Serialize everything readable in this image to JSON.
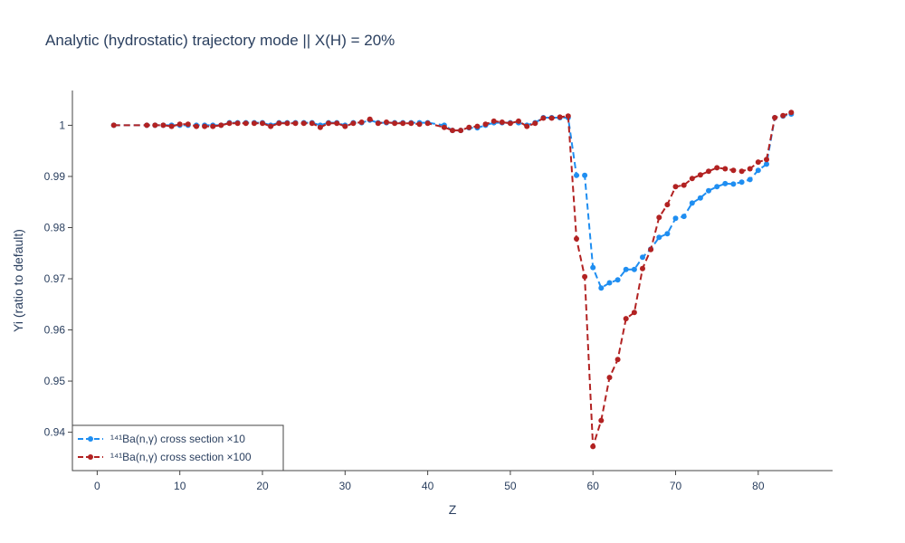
{
  "chart_data": {
    "type": "line",
    "title": "Analytic (hydrostatic) trajectory mode || X(H) = 20%",
    "xlabel": "Z",
    "ylabel": "Yi (ratio to default)",
    "xlim": [
      -3,
      89
    ],
    "ylim": [
      0.9325,
      1.0068
    ],
    "x_ticks": [
      0,
      10,
      20,
      30,
      40,
      50,
      60,
      70,
      80
    ],
    "y_ticks": [
      0.94,
      0.95,
      0.96,
      0.97,
      0.98,
      0.99,
      1
    ],
    "y_tick_labels": [
      "0.94",
      "0.95",
      "0.96",
      "0.97",
      "0.98",
      "0.99",
      "1"
    ],
    "grid": false,
    "legend_position": "bottom-left",
    "x": [
      2,
      6,
      7,
      8,
      9,
      10,
      11,
      12,
      13,
      14,
      15,
      16,
      17,
      18,
      19,
      20,
      21,
      22,
      23,
      24,
      25,
      26,
      27,
      28,
      29,
      30,
      31,
      32,
      33,
      34,
      35,
      36,
      37,
      38,
      39,
      40,
      42,
      43,
      44,
      45,
      46,
      47,
      48,
      49,
      50,
      51,
      52,
      53,
      54,
      55,
      56,
      57,
      58,
      59,
      60,
      61,
      62,
      63,
      64,
      65,
      66,
      67,
      68,
      69,
      70,
      71,
      72,
      73,
      74,
      75,
      76,
      77,
      78,
      79,
      80,
      81,
      82,
      83,
      84
    ],
    "series": [
      {
        "name": "¹⁴¹Ba(n,γ) cross section ×10",
        "color": "#1f8ef1",
        "values": [
          1.0,
          1.0,
          1.0,
          1.0,
          1.0,
          1.0,
          1.0,
          1.0,
          1.0,
          1.0,
          1.0,
          1.0005,
          1.0005,
          1.0005,
          1.0005,
          1.0005,
          1.0,
          1.0005,
          1.0005,
          1.0005,
          1.0005,
          1.0005,
          1.0,
          1.0005,
          1.0005,
          1.0,
          1.0005,
          1.0005,
          1.001,
          1.0005,
          1.0005,
          1.0005,
          1.0005,
          1.0005,
          1.0005,
          1.0005,
          1.0,
          0.999,
          0.999,
          0.9995,
          0.9995,
          1.0,
          1.0005,
          1.0005,
          1.0005,
          1.0005,
          1.0,
          1.0005,
          1.0015,
          1.0015,
          1.0015,
          1.0015,
          0.9902,
          0.9902,
          0.9722,
          0.9682,
          0.9692,
          0.9698,
          0.9718,
          0.9718,
          0.9742,
          0.9758,
          0.9781,
          0.9788,
          0.9818,
          0.9822,
          0.9848,
          0.9858,
          0.9872,
          0.988,
          0.9886,
          0.9885,
          0.9889,
          0.9894,
          0.9912,
          0.9924,
          1.0015,
          1.0018,
          1.0022
        ]
      },
      {
        "name": "¹⁴¹Ba(n,γ) cross section ×100",
        "color": "#b22222",
        "values": [
          1.0,
          1.0,
          1.0,
          1.0,
          0.9998,
          1.0002,
          1.0002,
          0.9998,
          0.9998,
          0.9998,
          1.0,
          1.0004,
          1.0004,
          1.0004,
          1.0004,
          1.0004,
          0.9998,
          1.0004,
          1.0004,
          1.0004,
          1.0004,
          1.0004,
          0.9996,
          1.0004,
          1.0004,
          0.9998,
          1.0004,
          1.0006,
          1.0012,
          1.0004,
          1.0006,
          1.0004,
          1.0004,
          1.0004,
          1.0002,
          1.0004,
          0.9996,
          0.999,
          0.999,
          0.9996,
          0.9998,
          1.0002,
          1.0008,
          1.0006,
          1.0004,
          1.0008,
          0.9998,
          1.0004,
          1.0014,
          1.0014,
          1.0016,
          1.0018,
          0.9778,
          0.9704,
          0.9372,
          0.9423,
          0.9507,
          0.9542,
          0.9622,
          0.9634,
          0.972,
          0.9757,
          0.982,
          0.9845,
          0.988,
          0.9883,
          0.9896,
          0.9903,
          0.991,
          0.9917,
          0.9915,
          0.9912,
          0.991,
          0.9915,
          0.9928,
          0.9933,
          1.0015,
          1.0019,
          1.0025
        ]
      }
    ]
  }
}
